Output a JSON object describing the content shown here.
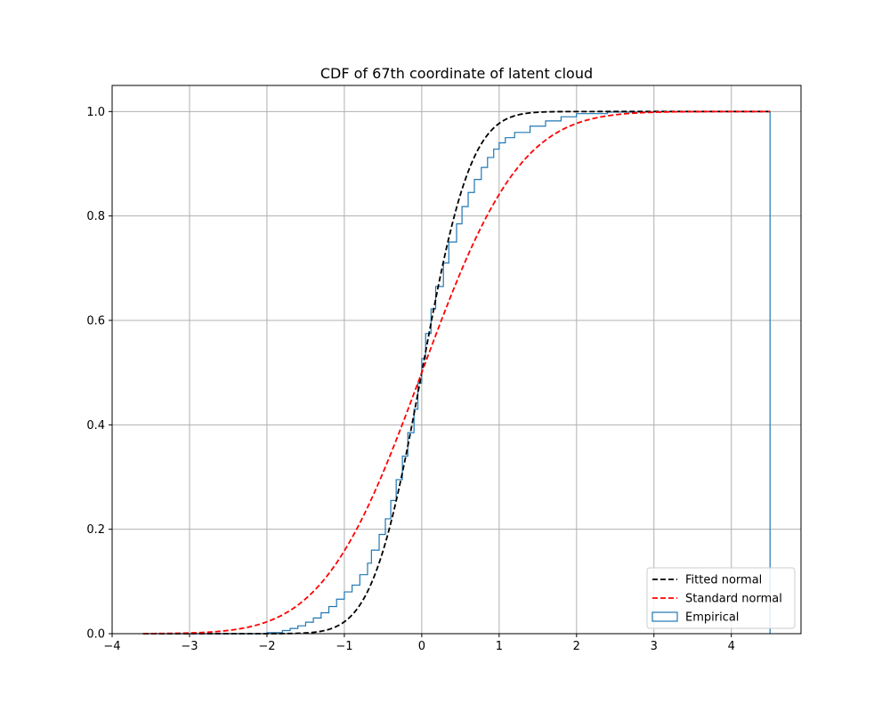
{
  "chart_data": {
    "type": "line",
    "title": "CDF of 67th coordinate of latent cloud",
    "xlabel": "",
    "ylabel": "",
    "xlim": [
      -4.0,
      4.9
    ],
    "ylim": [
      0.0,
      1.05
    ],
    "x_ticks": [
      -4,
      -3,
      -2,
      -1,
      0,
      1,
      2,
      3,
      4
    ],
    "x_tick_labels": [
      "−4",
      "−3",
      "−2",
      "−1",
      "0",
      "1",
      "2",
      "3",
      "4"
    ],
    "y_ticks": [
      0.0,
      0.2,
      0.4,
      0.6,
      0.8,
      1.0
    ],
    "y_tick_labels": [
      "0.0",
      "0.2",
      "0.4",
      "0.6",
      "0.8",
      "1.0"
    ],
    "grid": true,
    "legend_position": "lower-right",
    "series": [
      {
        "name": "Fitted normal",
        "kind": "normal_cdf",
        "mean": 0.0,
        "std": 0.5,
        "x_range": [
          -3.6,
          4.5
        ],
        "color": "#000000",
        "style": "dashed"
      },
      {
        "name": "Standard normal",
        "kind": "normal_cdf",
        "mean": 0.0,
        "std": 1.0,
        "x_range": [
          -3.6,
          4.5
        ],
        "color": "#ff0000",
        "style": "dashed"
      },
      {
        "name": "Empirical",
        "kind": "step_histogram_cdf",
        "color": "#1f77b4",
        "x_range": [
          -3.6,
          4.5
        ],
        "steps": [
          [
            -3.6,
            0.0
          ],
          [
            -2.0,
            0.002
          ],
          [
            -1.8,
            0.006
          ],
          [
            -1.7,
            0.01
          ],
          [
            -1.6,
            0.015
          ],
          [
            -1.5,
            0.022
          ],
          [
            -1.4,
            0.03
          ],
          [
            -1.3,
            0.04
          ],
          [
            -1.2,
            0.052
          ],
          [
            -1.1,
            0.066
          ],
          [
            -1.0,
            0.08
          ],
          [
            -0.9,
            0.093
          ],
          [
            -0.8,
            0.113
          ],
          [
            -0.7,
            0.135
          ],
          [
            -0.65,
            0.16
          ],
          [
            -0.55,
            0.19
          ],
          [
            -0.47,
            0.22
          ],
          [
            -0.4,
            0.255
          ],
          [
            -0.33,
            0.295
          ],
          [
            -0.25,
            0.34
          ],
          [
            -0.18,
            0.385
          ],
          [
            -0.1,
            0.43
          ],
          [
            -0.05,
            0.48
          ],
          [
            0.0,
            0.527
          ],
          [
            0.05,
            0.575
          ],
          [
            0.12,
            0.622
          ],
          [
            0.18,
            0.665
          ],
          [
            0.28,
            0.71
          ],
          [
            0.35,
            0.75
          ],
          [
            0.45,
            0.785
          ],
          [
            0.52,
            0.818
          ],
          [
            0.6,
            0.845
          ],
          [
            0.68,
            0.87
          ],
          [
            0.77,
            0.893
          ],
          [
            0.85,
            0.912
          ],
          [
            0.93,
            0.928
          ],
          [
            1.0,
            0.94
          ],
          [
            1.08,
            0.95
          ],
          [
            1.2,
            0.96
          ],
          [
            1.4,
            0.972
          ],
          [
            1.6,
            0.982
          ],
          [
            1.8,
            0.99
          ],
          [
            2.0,
            0.996
          ],
          [
            2.4,
            0.999
          ],
          [
            3.0,
            1.0
          ],
          [
            4.5,
            1.0
          ]
        ]
      }
    ]
  }
}
